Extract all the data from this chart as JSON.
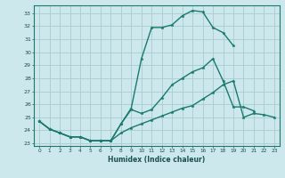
{
  "xlabel": "Humidex (Indice chaleur)",
  "bg_color": "#cce8ec",
  "grid_color": "#aacccc",
  "line_color": "#1a7a6e",
  "xlim": [
    -0.5,
    23.5
  ],
  "ylim": [
    22.8,
    33.6
  ],
  "yticks": [
    23,
    24,
    25,
    26,
    27,
    28,
    29,
    30,
    31,
    32,
    33
  ],
  "xticks": [
    0,
    1,
    2,
    3,
    4,
    5,
    6,
    7,
    8,
    9,
    10,
    11,
    12,
    13,
    14,
    15,
    16,
    17,
    18,
    19,
    20,
    21,
    22,
    23
  ],
  "curve1_x": [
    0,
    1,
    2,
    3,
    4,
    5,
    6,
    7,
    8,
    9,
    10,
    11,
    12,
    13,
    14,
    15,
    16,
    17,
    18,
    19
  ],
  "curve1_y": [
    24.7,
    24.1,
    23.8,
    23.5,
    23.5,
    23.2,
    23.2,
    23.2,
    24.5,
    25.7,
    29.5,
    31.9,
    31.9,
    32.1,
    32.8,
    33.2,
    33.1,
    31.9,
    31.5,
    30.5
  ],
  "curve2_x": [
    0,
    1,
    2,
    3,
    4,
    5,
    6,
    7,
    8,
    9,
    10,
    11,
    12,
    13,
    14,
    15,
    16,
    17,
    18,
    19,
    20,
    21
  ],
  "curve2_y": [
    24.7,
    24.1,
    23.8,
    23.5,
    23.5,
    23.2,
    23.2,
    23.2,
    24.5,
    25.6,
    25.3,
    25.6,
    26.5,
    27.5,
    28.0,
    28.5,
    28.8,
    29.5,
    27.8,
    25.8,
    25.8,
    25.5
  ],
  "curve3_x": [
    0,
    1,
    2,
    3,
    4,
    5,
    6,
    7,
    8,
    9,
    10,
    11,
    12,
    13,
    14,
    15,
    16,
    17,
    18,
    19,
    20,
    21,
    22,
    23
  ],
  "curve3_y": [
    24.7,
    24.1,
    23.8,
    23.5,
    23.5,
    23.2,
    23.2,
    23.2,
    23.8,
    24.2,
    24.5,
    24.8,
    25.1,
    25.4,
    25.7,
    25.9,
    26.4,
    26.9,
    27.5,
    27.8,
    25.0,
    25.3,
    25.2,
    25.0
  ]
}
